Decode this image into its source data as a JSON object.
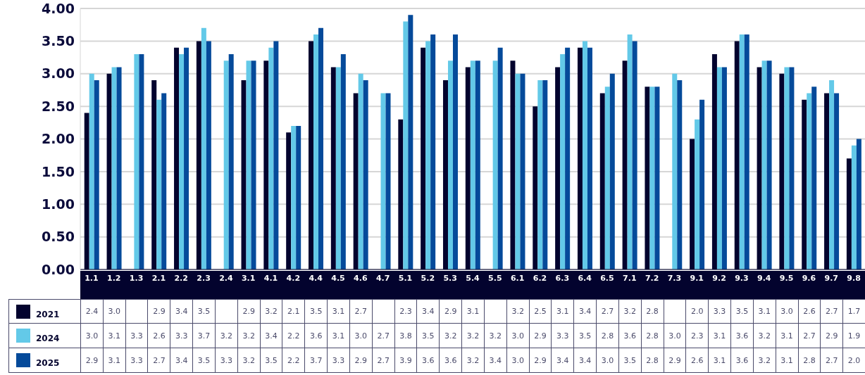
{
  "chart_data": {
    "type": "bar",
    "categories": [
      "1.1",
      "1.2",
      "1.3",
      "2.1",
      "2.2",
      "2.3",
      "2.4",
      "3.1",
      "4.1",
      "4.2",
      "4.4",
      "4.5",
      "4.6",
      "4.7",
      "5.1",
      "5.2",
      "5.3",
      "5.4",
      "5.5",
      "6.1",
      "6.2",
      "6.3",
      "6.4",
      "6.5",
      "7.1",
      "7.2",
      "7.3",
      "9.1",
      "9.2",
      "9.3",
      "9.4",
      "9.5",
      "9.6",
      "9.7",
      "9.8"
    ],
    "series": [
      {
        "name": "2021",
        "color": "#03032e",
        "values": [
          2.4,
          3.0,
          null,
          2.9,
          3.4,
          3.5,
          null,
          2.9,
          3.2,
          2.1,
          3.5,
          3.1,
          2.7,
          null,
          2.3,
          3.4,
          2.9,
          3.1,
          null,
          3.2,
          2.5,
          3.1,
          3.4,
          2.7,
          3.2,
          2.8,
          null,
          2.0,
          3.3,
          3.5,
          3.1,
          3.0,
          2.6,
          2.7,
          1.7
        ],
        "value_labels": [
          "2.4",
          "3.0",
          null,
          "2.9",
          "3.4",
          "3.5",
          null,
          "2.9",
          "3.2",
          "2.1",
          "3.5",
          "3.1",
          "2.7",
          null,
          "2.3",
          "3.4",
          "2.9",
          "3.1",
          null,
          "3.2",
          "2.5",
          "3.1",
          "3.4",
          "2.7",
          "3.2",
          "2.8",
          null,
          "2.0",
          "3.3",
          "3.5",
          "3.1",
          "3.0",
          "2.6",
          "2.7",
          "1.7"
        ]
      },
      {
        "name": "2024",
        "color": "#63c9e8",
        "values": [
          3.0,
          3.1,
          3.3,
          2.6,
          3.3,
          3.7,
          3.2,
          3.2,
          3.4,
          2.2,
          3.6,
          3.1,
          3.0,
          2.7,
          3.8,
          3.5,
          3.2,
          3.2,
          3.2,
          3.0,
          2.9,
          3.3,
          3.5,
          2.8,
          3.6,
          2.8,
          3.0,
          2.3,
          3.1,
          3.6,
          3.2,
          3.1,
          2.7,
          2.9,
          1.9
        ],
        "value_labels": [
          "3.0",
          "3.1",
          "3.3",
          "2.6",
          "3.3",
          "3.7",
          "3.2",
          "3.2",
          "3.4",
          "2.2",
          "3.6",
          "3.1",
          "3.0",
          "2.7",
          "3.8",
          "3.5",
          "3.2",
          "3.2",
          "3.2",
          "3.0",
          "2.9",
          "3.3",
          "3.5",
          "2.8",
          "3.6",
          "2.8",
          "3.0",
          "2.3",
          "3.1",
          "3.6",
          "3.2",
          "3.1",
          "2.7",
          "2.9",
          "1.9"
        ]
      },
      {
        "name": "2025",
        "color": "#054a9a",
        "values": [
          2.9,
          3.1,
          3.3,
          2.7,
          3.4,
          3.5,
          3.3,
          3.2,
          3.5,
          2.2,
          3.7,
          3.3,
          2.9,
          2.7,
          3.9,
          3.6,
          3.6,
          3.2,
          3.4,
          3.0,
          2.9,
          3.4,
          3.4,
          3.0,
          3.5,
          2.8,
          2.9,
          2.6,
          3.1,
          3.6,
          3.2,
          3.1,
          2.8,
          2.7,
          2.0
        ],
        "value_labels": [
          "2.9",
          "3.1",
          "3.3",
          "2.7",
          "3.4",
          "3.5",
          "3.3",
          "3.2",
          "3.5",
          "2.2",
          "3.7",
          "3.3",
          "2.9",
          "2.7",
          "3.9",
          "3.6",
          "3.6",
          "3.2",
          "3.4",
          "3.0",
          "2.9",
          "3.4",
          "3.4",
          "3.0",
          "3.5",
          "2.8",
          "2.9",
          "2.6",
          "3.1",
          "3.6",
          "3.2",
          "3.1",
          "2.8",
          "2.7",
          "2.0"
        ]
      }
    ],
    "ylim": [
      0,
      4
    ],
    "yticks": [
      {
        "value": 0,
        "label": "0.00"
      },
      {
        "value": 0.5,
        "label": "0.50"
      },
      {
        "value": 1,
        "label": "1.00"
      },
      {
        "value": 1.5,
        "label": "1.50"
      },
      {
        "value": 2,
        "label": "2.00"
      },
      {
        "value": 2.5,
        "label": "2.50"
      },
      {
        "value": 3,
        "label": "3.00"
      },
      {
        "value": 3.5,
        "label": "3.50"
      },
      {
        "value": 4,
        "label": "4.00"
      }
    ],
    "grid": "y",
    "legend": "bottom left"
  }
}
